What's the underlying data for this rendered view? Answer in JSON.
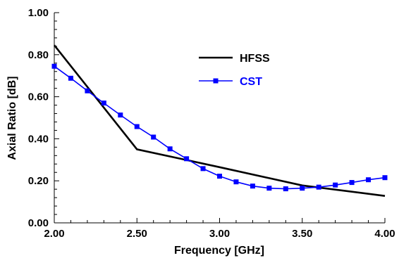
{
  "chart_data": {
    "type": "line",
    "title": "",
    "xlabel": "Frequency [GHz]",
    "ylabel": "Axial Ratio [dB]",
    "xlim": [
      2.0,
      4.0
    ],
    "ylim": [
      0.0,
      1.0
    ],
    "xticks": [
      "2.00",
      "2.50",
      "3.00",
      "3.50",
      "4.00"
    ],
    "yticks": [
      "0.00",
      "0.20",
      "0.40",
      "0.60",
      "0.80",
      "1.00"
    ],
    "grid": false,
    "legend_position": "top-right",
    "series": [
      {
        "name": "HFSS",
        "color": "#000000",
        "marker": "none",
        "x": [
          2.0,
          2.5,
          3.0,
          3.5,
          4.0
        ],
        "y": [
          0.845,
          0.35,
          0.265,
          0.178,
          0.128
        ]
      },
      {
        "name": "CST",
        "color": "#0000ff",
        "marker": "square",
        "x": [
          2.0,
          2.1,
          2.2,
          2.3,
          2.4,
          2.5,
          2.6,
          2.7,
          2.8,
          2.9,
          3.0,
          3.1,
          3.2,
          3.3,
          3.4,
          3.5,
          3.6,
          3.7,
          3.8,
          3.9,
          4.0
        ],
        "y": [
          0.745,
          0.688,
          0.628,
          0.57,
          0.513,
          0.458,
          0.408,
          0.352,
          0.305,
          0.258,
          0.222,
          0.195,
          0.175,
          0.165,
          0.162,
          0.165,
          0.17,
          0.18,
          0.192,
          0.205,
          0.215
        ]
      }
    ]
  }
}
